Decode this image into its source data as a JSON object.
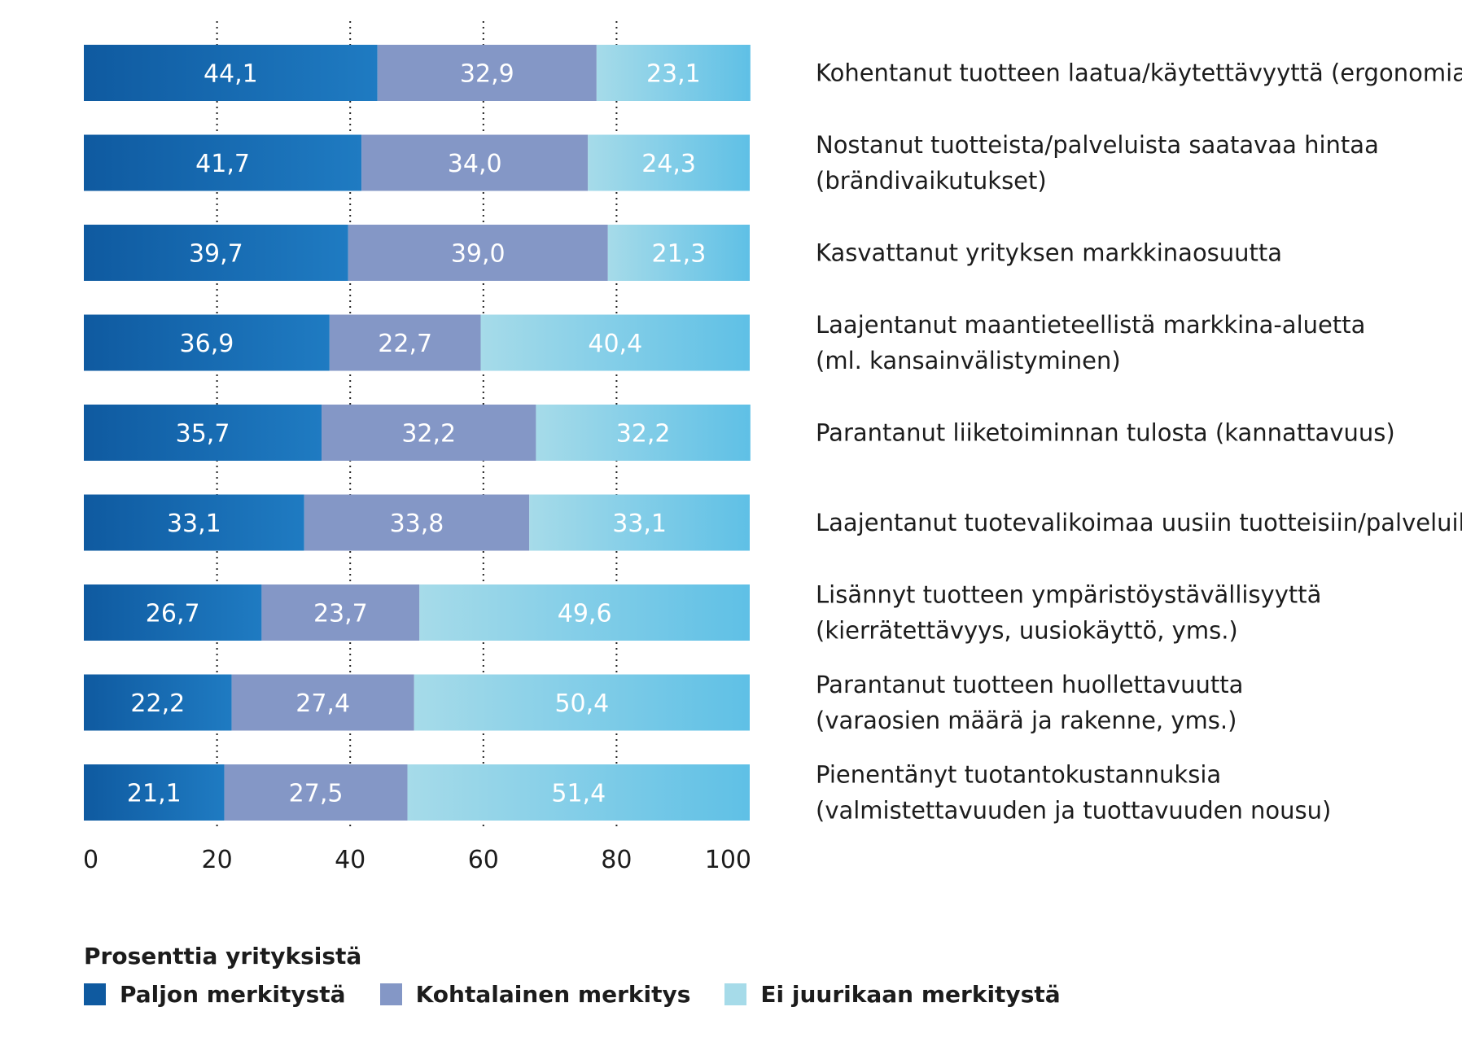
{
  "chart_data": {
    "type": "bar",
    "orientation": "horizontal",
    "stacked": true,
    "categories": [
      [
        "Kohentanut tuotteen laatua/käytettävyyttä (ergonomia)"
      ],
      [
        "Nostanut tuotteista/palveluista saatavaa hintaa",
        "(brändivaikutukset)"
      ],
      [
        "Kasvattanut yrityksen markkinaosuutta"
      ],
      [
        "Laajentanut maantieteellistä markkina-aluetta",
        "(ml. kansainvälistyminen)"
      ],
      [
        "Parantanut liiketoiminnan tulosta (kannattavuus)"
      ],
      [
        "Laajentanut tuotevalikoimaa uusiin tuotteisiin/palveluihin"
      ],
      [
        "Lisännyt tuotteen ympäristöystävällisyyttä",
        "(kierrätettävyys, uusiokäyttö, yms.)"
      ],
      [
        "Parantanut tuotteen huollettavuutta",
        "(varaosien määrä ja rakenne, yms.)"
      ],
      [
        "Pienentänyt tuotantokustannuksia",
        "(valmistettavuuden ja tuottavuuden nousu)"
      ]
    ],
    "series": [
      {
        "name": "Paljon merkitystä",
        "color": "#0f5aa0",
        "color_end": "#1f7bc2",
        "values": [
          44.1,
          41.7,
          39.7,
          36.9,
          35.7,
          33.1,
          26.7,
          22.2,
          21.1
        ],
        "labels": [
          "44,1",
          "41,7",
          "39,7",
          "36,9",
          "35,7",
          "33,1",
          "26,7",
          "22,2",
          "21,1"
        ]
      },
      {
        "name": "Kohtalainen merkitys",
        "color": "#8497c6",
        "color_end": "#8497c6",
        "values": [
          32.9,
          34.0,
          39.0,
          22.7,
          32.2,
          33.8,
          23.7,
          27.4,
          27.5
        ],
        "labels": [
          "32,9",
          "34,0",
          "39,0",
          "22,7",
          "32,2",
          "33,8",
          "23,7",
          "27,4",
          "27,5"
        ]
      },
      {
        "name": "Ei juurikaan merkitystä",
        "color": "#a6dbe9",
        "color_end": "#5fc0e6",
        "values": [
          23.1,
          24.3,
          21.3,
          40.4,
          32.2,
          33.1,
          49.6,
          50.4,
          51.4
        ],
        "labels": [
          "23,1",
          "24,3",
          "21,3",
          "40,4",
          "32,2",
          "33,1",
          "49,6",
          "50,4",
          "51,4"
        ]
      }
    ],
    "xlim": [
      0,
      100
    ],
    "xticks": [
      0,
      20,
      40,
      60,
      80,
      100
    ],
    "grid": "dotted vertical lines at 20, 40, 60, 80",
    "legend": {
      "title": "Prosenttia yrityksistä",
      "placement": "bottom-left"
    }
  }
}
